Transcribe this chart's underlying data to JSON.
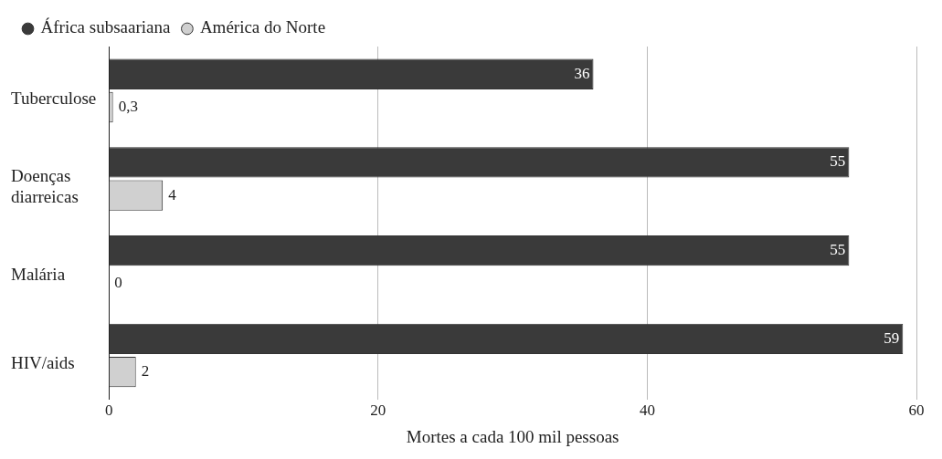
{
  "chart_data": {
    "type": "bar",
    "orientation": "horizontal",
    "xlabel": "Mortes a cada 100 mil pessoas",
    "categories": [
      "Tuberculose",
      "Doenças diarreicas",
      "Malária",
      "HIV/aids"
    ],
    "series": [
      {
        "name": "África subsaariana",
        "color": "#3a3a3a",
        "values": [
          36,
          55,
          55,
          59
        ],
        "value_labels": [
          "36",
          "55",
          "55",
          "59"
        ]
      },
      {
        "name": "América do Norte",
        "color": "#d0d0d0",
        "values": [
          0.3,
          4,
          0,
          2
        ],
        "value_labels": [
          "0,3",
          "4",
          "0",
          "2"
        ]
      }
    ],
    "xlim": [
      0,
      60
    ],
    "xticks": [
      0,
      20,
      40,
      60
    ],
    "grid": "x",
    "legend": "top left"
  }
}
